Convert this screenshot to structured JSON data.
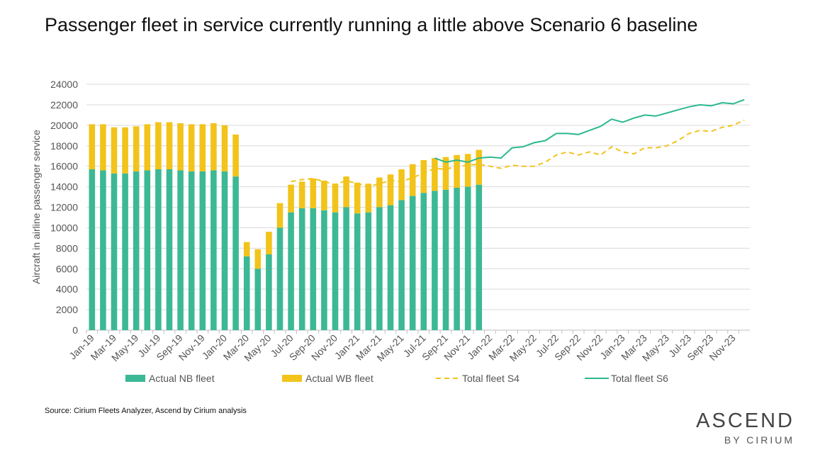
{
  "chart_data": {
    "type": "bar",
    "title": "Passenger fleet in service currently running a little above Scenario 6 baseline",
    "y_label": "Aircraft in airline passenger service",
    "source": "Source: Cirium Fleets Analyzer, Ascend by Cirium analysis",
    "brand": {
      "name": "ASCEND",
      "tagline": "BY CIRIUM"
    },
    "categories": [
      "Jan-19",
      null,
      "Mar-19",
      null,
      "May-19",
      null,
      "Jul-19",
      null,
      "Sep-19",
      null,
      "Nov-19",
      null,
      "Jan-20",
      null,
      "Mar-20",
      null,
      "May-20",
      null,
      "Jul-20",
      null,
      "Sep-20",
      null,
      "Nov-20",
      null,
      "Jan-21",
      null,
      "Mar-21",
      null,
      "May-21",
      null,
      "Jul-21",
      null,
      "Sep-21",
      null,
      "Nov-21",
      null,
      "Jan-22",
      null,
      "Mar-22",
      null,
      "May-22",
      null,
      "Jul-22",
      null,
      "Sep-22",
      null,
      "Nov-22",
      null,
      "Jan-23",
      null,
      "Mar-23",
      null,
      "May-23",
      null,
      "Jul-23",
      null,
      "Sep-23",
      null,
      "Nov-23",
      null
    ],
    "ylim": [
      0,
      24000
    ],
    "yticks": [
      0,
      2000,
      4000,
      6000,
      8000,
      10000,
      12000,
      14000,
      16000,
      18000,
      20000,
      22000,
      24000
    ],
    "grid": true,
    "series": [
      {
        "name": "Actual NB fleet",
        "type": "bar",
        "color": "#3cb895",
        "values": [
          15700,
          15600,
          15300,
          15300,
          15500,
          15600,
          15700,
          15700,
          15600,
          15500,
          15500,
          15600,
          15500,
          15000,
          7200,
          6000,
          7400,
          10000,
          11500,
          11900,
          11900,
          11700,
          11500,
          12000,
          11400,
          11500,
          12000,
          12200,
          12700,
          13100,
          13400,
          13600,
          13700,
          13900,
          14000,
          14200,
          null,
          null,
          null,
          null,
          null,
          null,
          null,
          null,
          null,
          null,
          null,
          null,
          null,
          null,
          null,
          null,
          null,
          null,
          null,
          null,
          null,
          null,
          null,
          null
        ]
      },
      {
        "name": "Actual WB fleet",
        "type": "bar",
        "color": "#f2c31a",
        "values": [
          4400,
          4500,
          4500,
          4500,
          4400,
          4500,
          4600,
          4600,
          4600,
          4600,
          4600,
          4600,
          4500,
          4100,
          1400,
          1900,
          2200,
          2400,
          2700,
          2600,
          2900,
          2900,
          2800,
          3000,
          3000,
          2800,
          2900,
          3000,
          3000,
          3100,
          3200,
          3200,
          3200,
          3200,
          3200,
          3400,
          null,
          null,
          null,
          null,
          null,
          null,
          null,
          null,
          null,
          null,
          null,
          null,
          null,
          null,
          null,
          null,
          null,
          null,
          null,
          null,
          null,
          null,
          null,
          null
        ]
      },
      {
        "name": "Total fleet S4",
        "type": "line",
        "style": "dashed",
        "color": "#f2c31a",
        "values": [
          null,
          null,
          null,
          null,
          null,
          null,
          null,
          null,
          null,
          null,
          null,
          null,
          null,
          null,
          null,
          null,
          null,
          null,
          14500,
          14700,
          14800,
          14500,
          14200,
          14600,
          14300,
          14000,
          14300,
          14600,
          14500,
          14900,
          15300,
          15800,
          15700,
          16000,
          16100,
          16200,
          16000,
          15800,
          16100,
          16000,
          16000,
          16400,
          17100,
          17400,
          17100,
          17400,
          17100,
          17900,
          17400,
          17200,
          17800,
          17800,
          18000,
          18500,
          19200,
          19500,
          19400,
          19800,
          20000,
          20500
        ]
      },
      {
        "name": "Total fleet S6",
        "type": "line",
        "style": "solid",
        "color": "#2cb88f",
        "values": [
          null,
          null,
          null,
          null,
          null,
          null,
          null,
          null,
          null,
          null,
          null,
          null,
          null,
          null,
          null,
          null,
          null,
          null,
          null,
          null,
          null,
          null,
          null,
          null,
          null,
          null,
          null,
          null,
          null,
          null,
          null,
          16800,
          16400,
          16600,
          16400,
          16800,
          16900,
          16800,
          17800,
          17900,
          18300,
          18500,
          19200,
          19200,
          19100,
          19500,
          19900,
          20600,
          20300,
          20700,
          21000,
          20900,
          21200,
          21500,
          21800,
          22000,
          21900,
          22200,
          22100,
          22500
        ]
      }
    ]
  }
}
